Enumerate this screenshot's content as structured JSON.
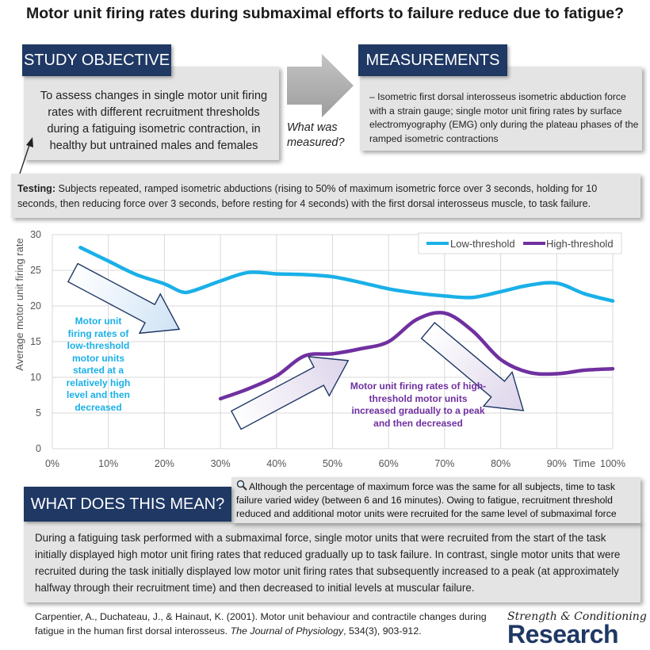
{
  "title": "Motor unit firing rates during submaximal efforts to failure reduce due to fatigue?",
  "objective": {
    "heading": "STUDY OBJECTIVE",
    "text": "To assess changes in single motor unit firing rates with different recruitment thresholds during a fatiguing isometric contraction, in healthy but untrained males and females"
  },
  "what_measured": "What was measured?",
  "measurements": {
    "heading": "MEASUREMENTS",
    "text": "– Isometric first dorsal interosseus isometric abduction force with a strain gauge; single motor unit firing rates by surface electromyography (EMG) only during the plateau phases of the ramped isometric contractions"
  },
  "testing": {
    "label": "Testing:",
    "text": "Subjects repeated, ramped isometric abductions (rising to 50% of maximum isometric force over 3 seconds, holding for 10 seconds, then reducing force over 3 seconds, before resting for 4 seconds) with the first dorsal interosseus muscle, to task failure."
  },
  "chart_data": {
    "type": "line",
    "xlabel": "Time",
    "ylabel": "Average motor unit firing rate",
    "xlim": [
      0,
      100
    ],
    "ylim": [
      0,
      30
    ],
    "x_ticks": [
      "0%",
      "10%",
      "20%",
      "30%",
      "40%",
      "50%",
      "60%",
      "70%",
      "80%",
      "90%",
      "100%"
    ],
    "y_ticks": [
      "0",
      "5",
      "10",
      "15",
      "20",
      "25",
      "30"
    ],
    "grid": true,
    "legend_position": "top-right",
    "series": [
      {
        "name": "Low-threshold",
        "color": "#1ab0e8",
        "x": [
          5,
          10,
          15,
          20,
          23,
          25,
          30,
          35,
          40,
          45,
          50,
          55,
          60,
          65,
          70,
          75,
          80,
          85,
          90,
          95,
          100
        ],
        "y": [
          28.2,
          26.3,
          24.4,
          23.1,
          22.0,
          22.1,
          23.5,
          24.7,
          24.5,
          24.4,
          24.1,
          23.3,
          22.4,
          21.8,
          21.4,
          21.2,
          22.0,
          22.9,
          23.2,
          21.7,
          20.7
        ]
      },
      {
        "name": "High-threshold",
        "color": "#7030a0",
        "x": [
          30,
          35,
          40,
          45,
          50,
          55,
          60,
          65,
          70,
          75,
          80,
          85,
          90,
          95,
          100
        ],
        "y": [
          7.0,
          8.4,
          10.2,
          13.0,
          13.3,
          14.0,
          15.0,
          18.1,
          19.0,
          16.5,
          12.5,
          10.7,
          10.5,
          11.0,
          11.2
        ]
      }
    ],
    "annotations": {
      "low": "Motor unit firing rates of low-threshold motor units started at a relatively high level and then decreased",
      "high": "Motor unit firing rates of high-threshold motor units increased gradually to a peak and then decreased"
    }
  },
  "meaning": {
    "heading": "WHAT DOES THIS MEAN?",
    "note": "Although the percentage of maximum force was the same for all subjects, time to task failure varied widey (between 6 and 16 minutes). Owing to fatigue, recruitment threshold reduced and additional motor units were recruited for the same level of submaximal force",
    "text": "During a fatiguing task performed with a submaximal force, single motor units that were recruited from the start of the task initially displayed high motor unit firing rates that reduced gradually up to task failure. In contrast, single motor units that were recruited during the task initially displayed low motor unit firing rates that subsequently increased to a peak (at approximately halfway through their recruitment time) and then decreased to initial levels at muscular failure."
  },
  "reference": {
    "authors": "Carpentier, A., Duchateau, J., & Hainaut, K. (2001). Motor unit behaviour and contractile changes during fatigue in the human first dorsal interosseus.",
    "journal": "The Journal of Physiology",
    "details": ", 534(3), 903-912."
  },
  "brand": {
    "top": "Strength & Conditioning",
    "main": "Research"
  }
}
